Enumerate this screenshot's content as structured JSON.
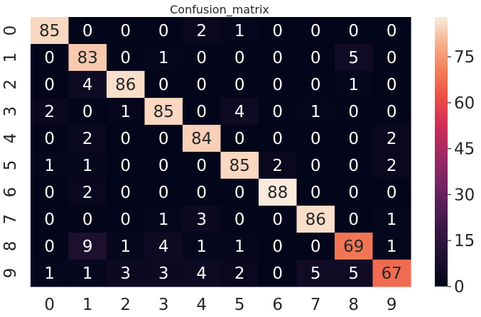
{
  "chart_data": {
    "type": "heatmap",
    "title": "Confusion_matrix",
    "xlabel": "",
    "ylabel": "",
    "x_categories": [
      "0",
      "1",
      "2",
      "3",
      "4",
      "5",
      "6",
      "7",
      "8",
      "9"
    ],
    "y_categories": [
      "0",
      "1",
      "2",
      "3",
      "4",
      "5",
      "6",
      "7",
      "8",
      "9"
    ],
    "values": [
      [
        85,
        0,
        0,
        0,
        2,
        1,
        0,
        0,
        0,
        0
      ],
      [
        0,
        83,
        0,
        1,
        0,
        0,
        0,
        0,
        5,
        0
      ],
      [
        0,
        4,
        86,
        0,
        0,
        0,
        0,
        0,
        1,
        0
      ],
      [
        2,
        0,
        1,
        85,
        0,
        4,
        0,
        1,
        0,
        0
      ],
      [
        0,
        2,
        0,
        0,
        84,
        0,
        0,
        0,
        0,
        2
      ],
      [
        1,
        1,
        0,
        0,
        0,
        85,
        2,
        0,
        0,
        2
      ],
      [
        0,
        2,
        0,
        0,
        0,
        0,
        88,
        0,
        0,
        0
      ],
      [
        0,
        0,
        0,
        1,
        3,
        0,
        0,
        86,
        0,
        1
      ],
      [
        0,
        9,
        1,
        4,
        1,
        1,
        0,
        0,
        69,
        1
      ],
      [
        1,
        1,
        3,
        3,
        4,
        2,
        0,
        5,
        5,
        67
      ]
    ],
    "value_range": [
      0,
      88
    ],
    "colormap": "rocket",
    "colorbar": {
      "ticks": [
        0,
        15,
        30,
        45,
        60,
        75
      ],
      "tick_labels": [
        "0",
        "15",
        "30",
        "45",
        "60",
        "75"
      ]
    }
  }
}
